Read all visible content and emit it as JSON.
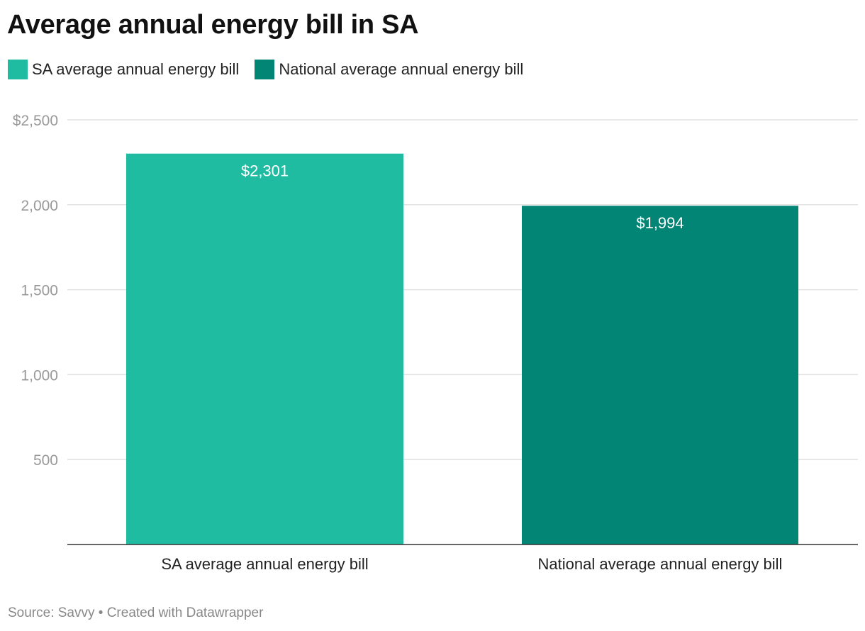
{
  "chart_data": {
    "type": "bar",
    "title": "Average annual energy bill in SA",
    "categories": [
      "SA average annual energy bill",
      "National average annual energy bill"
    ],
    "values": [
      2301,
      1994
    ],
    "data_labels": [
      "$2,301",
      "$1,994"
    ],
    "colors": [
      "#1fbca2",
      "#038575"
    ],
    "legend": [
      "SA average annual energy bill",
      "National average annual energy bill"
    ],
    "legend_placement": "top-left",
    "ylim": [
      0,
      2500
    ],
    "yticks": [
      500,
      1000,
      1500,
      2000,
      2500
    ],
    "ytick_labels": [
      "500",
      "1,000",
      "1,500",
      "2,000",
      "$2,500"
    ],
    "grid": true,
    "xlabel": "",
    "ylabel": ""
  },
  "footer": {
    "source": "Source: Savvy • Created with Datawrapper"
  }
}
